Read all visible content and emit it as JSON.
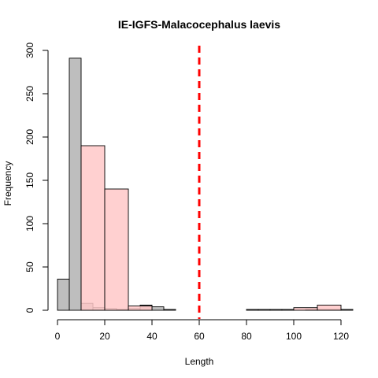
{
  "chart_data": {
    "type": "histogram",
    "title": "IE-IGFS-Malacocephalus laevis",
    "xlabel": "Length",
    "ylabel": "Frequency",
    "xlim": [
      0,
      125
    ],
    "ylim": [
      0,
      300
    ],
    "x_ticks": [
      0,
      20,
      40,
      60,
      80,
      100,
      120
    ],
    "y_ticks": [
      0,
      50,
      100,
      150,
      200,
      250,
      300
    ],
    "grid": false,
    "legend": "none",
    "series": [
      {
        "color": "#bebebe",
        "bins": [
          {
            "x0": 0,
            "x1": 5,
            "count": 36
          },
          {
            "x0": 5,
            "x1": 10,
            "count": 291
          },
          {
            "x0": 10,
            "x1": 15,
            "count": 8
          },
          {
            "x0": 15,
            "x1": 20,
            "count": 3
          },
          {
            "x0": 20,
            "x1": 25,
            "count": 2
          },
          {
            "x0": 25,
            "x1": 30,
            "count": 1
          },
          {
            "x0": 30,
            "x1": 35,
            "count": 2
          },
          {
            "x0": 35,
            "x1": 40,
            "count": 6
          },
          {
            "x0": 40,
            "x1": 45,
            "count": 4
          },
          {
            "x0": 45,
            "x1": 50,
            "count": 1
          },
          {
            "x0": 50,
            "x1": 55,
            "count": 0
          },
          {
            "x0": 55,
            "x1": 60,
            "count": 0
          },
          {
            "x0": 60,
            "x1": 65,
            "count": 0
          },
          {
            "x0": 65,
            "x1": 70,
            "count": 0
          },
          {
            "x0": 70,
            "x1": 75,
            "count": 0
          },
          {
            "x0": 75,
            "x1": 80,
            "count": 0
          },
          {
            "x0": 80,
            "x1": 85,
            "count": 1
          },
          {
            "x0": 85,
            "x1": 90,
            "count": 1
          },
          {
            "x0": 90,
            "x1": 95,
            "count": 1
          },
          {
            "x0": 95,
            "x1": 100,
            "count": 1
          },
          {
            "x0": 100,
            "x1": 105,
            "count": 0
          },
          {
            "x0": 105,
            "x1": 110,
            "count": 1
          },
          {
            "x0": 110,
            "x1": 115,
            "count": 1
          },
          {
            "x0": 115,
            "x1": 120,
            "count": 1
          },
          {
            "x0": 120,
            "x1": 125,
            "count": 1
          }
        ]
      },
      {
        "color": "#ffc8c8",
        "bins": [
          {
            "x0": 10,
            "x1": 20,
            "count": 190
          },
          {
            "x0": 20,
            "x1": 30,
            "count": 140
          },
          {
            "x0": 30,
            "x1": 40,
            "count": 5
          },
          {
            "x0": 40,
            "x1": 50,
            "count": 0
          },
          {
            "x0": 50,
            "x1": 60,
            "count": 0
          },
          {
            "x0": 60,
            "x1": 70,
            "count": 0
          },
          {
            "x0": 70,
            "x1": 80,
            "count": 0
          },
          {
            "x0": 80,
            "x1": 90,
            "count": 0
          },
          {
            "x0": 90,
            "x1": 100,
            "count": 0
          },
          {
            "x0": 100,
            "x1": 110,
            "count": 3
          },
          {
            "x0": 110,
            "x1": 120,
            "count": 6
          }
        ]
      }
    ],
    "reference_line": {
      "x": 60,
      "color": "#ff0000",
      "style": "dashed"
    }
  }
}
